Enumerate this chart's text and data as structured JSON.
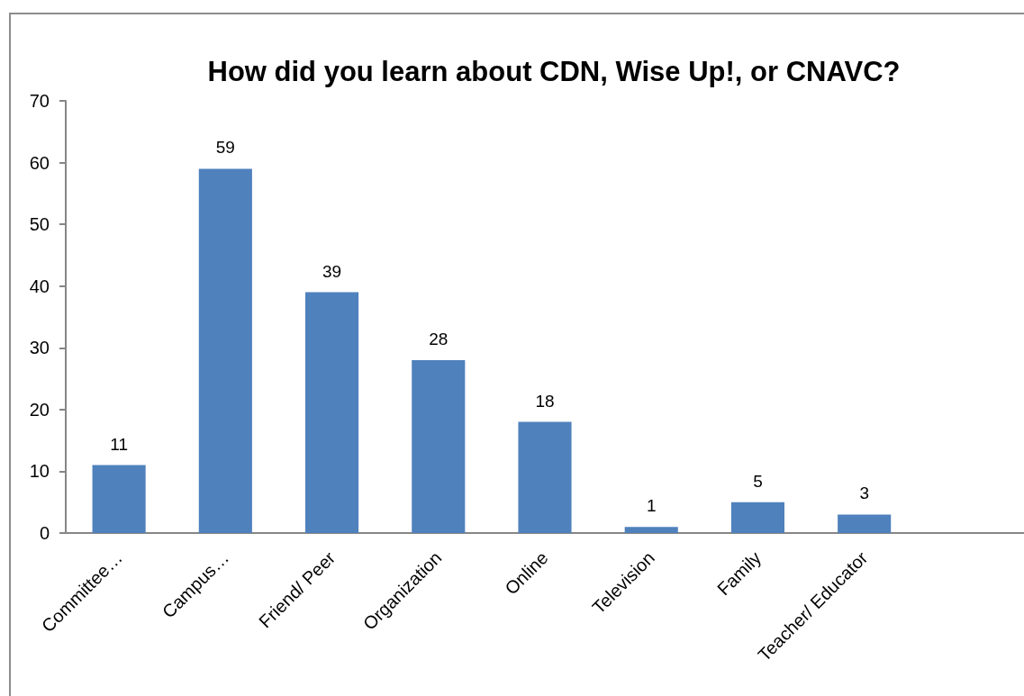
{
  "chart_data": {
    "type": "bar",
    "title": "How did you learn about CDN, Wise Up!, or CNAVC?",
    "categories": [
      "Committee…",
      "Campus…",
      "Friend/ Peer",
      "Organization",
      "Online",
      "Television",
      "Family",
      "Teacher/ Educator",
      null
    ],
    "values": [
      11,
      59,
      39,
      28,
      18,
      1,
      5,
      3,
      null
    ],
    "color": "#4f81bd",
    "ylim": [
      0,
      70
    ],
    "yticks": [
      0,
      10,
      20,
      30,
      40,
      50,
      60,
      70
    ],
    "data_labels": true
  }
}
